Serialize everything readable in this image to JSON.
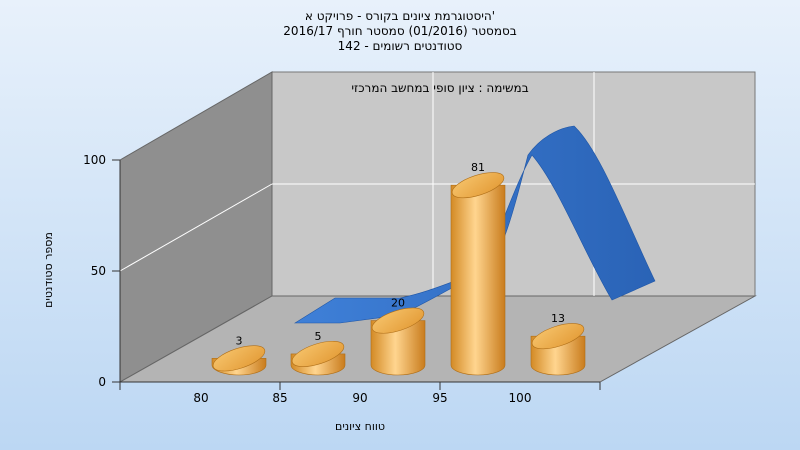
{
  "header": {
    "line1": "היסטוגרמת ציונים בקורס - פרויקט א'",
    "line2": "בסמסטר  (01/2016)  סמסטר חורף 2016/17",
    "line3": "142 - סטודנטים רשומים"
  },
  "chart_data": {
    "type": "bar",
    "annotation": "במשימה : ציון סופי במחשב המרכזי",
    "categories": [
      "80",
      "85",
      "90",
      "95",
      "100"
    ],
    "bar_categories": [
      "80",
      "85",
      "90",
      "95",
      "100"
    ],
    "values": [
      3,
      5,
      20,
      81,
      13
    ],
    "x_ticks": [
      "80",
      "85",
      "90",
      "95",
      "100"
    ],
    "y_ticks": [
      0,
      50,
      100
    ],
    "ylim": [
      0,
      100
    ],
    "xlabel": "טווח ציונים",
    "ylabel": "מספר סטודנטים",
    "grid": true,
    "colors": {
      "bar": "#e9a84a",
      "curve": "#2f6fca",
      "wall_back": "#c8c8c8",
      "wall_left": "#8f8f8f",
      "floor": "#b4b4b4"
    }
  }
}
